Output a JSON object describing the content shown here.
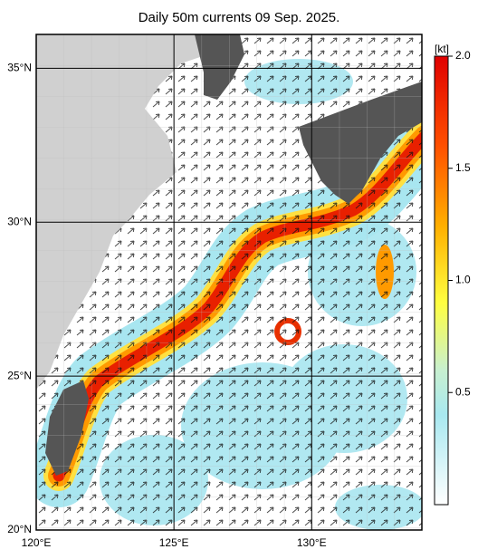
{
  "title": "Daily 50m currents 09 Sep. 2025.",
  "map": {
    "lonlim": [
      120,
      134
    ],
    "latlim": [
      20,
      36.1
    ],
    "lon_ticks": [
      {
        "value": 120,
        "label": "120°E"
      },
      {
        "value": 125,
        "label": "125°E"
      },
      {
        "value": 130,
        "label": "130°E"
      }
    ],
    "lat_ticks": [
      {
        "value": 20,
        "label": "20°N"
      },
      {
        "value": 25,
        "label": "25°N"
      },
      {
        "value": 30,
        "label": "30°N"
      },
      {
        "value": 35,
        "label": "35°N"
      }
    ]
  },
  "colorbar": {
    "unit": "[kt]",
    "range": [
      0,
      2
    ],
    "ticks": [
      0.5,
      {
        "value": 1,
        "label": "1.0"
      },
      1.5,
      {
        "value": 2,
        "label": "2.0"
      }
    ]
  }
}
